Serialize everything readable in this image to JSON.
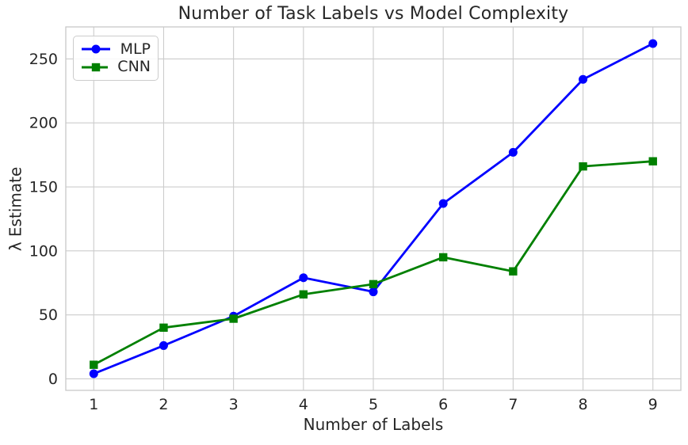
{
  "figure": {
    "background": "#ffffff",
    "text_color": "#262626",
    "grid_color": "#cccccc",
    "spine_color": "#c8c8c8"
  },
  "chart_data": {
    "type": "line",
    "title": "Number of Task Labels vs Model Complexity",
    "xlabel": "Number of Labels",
    "ylabel": "λ Estimate",
    "x": [
      1,
      2,
      3,
      4,
      5,
      6,
      7,
      8,
      9
    ],
    "series": [
      {
        "name": "MLP",
        "color": "#0000ff",
        "marker": "circle",
        "values": [
          4,
          26,
          49,
          79,
          68,
          137,
          177,
          234,
          262
        ]
      },
      {
        "name": "CNN",
        "color": "#008000",
        "marker": "square",
        "values": [
          11,
          40,
          47,
          66,
          74,
          95,
          84,
          166,
          170
        ]
      }
    ],
    "xticks": [
      1,
      2,
      3,
      4,
      5,
      6,
      7,
      8,
      9
    ],
    "yticks": [
      0,
      50,
      100,
      150,
      200,
      250
    ],
    "xlim": [
      0.6,
      9.4
    ],
    "ylim": [
      -9,
      275
    ],
    "grid": true,
    "legend_position": "upper left"
  }
}
